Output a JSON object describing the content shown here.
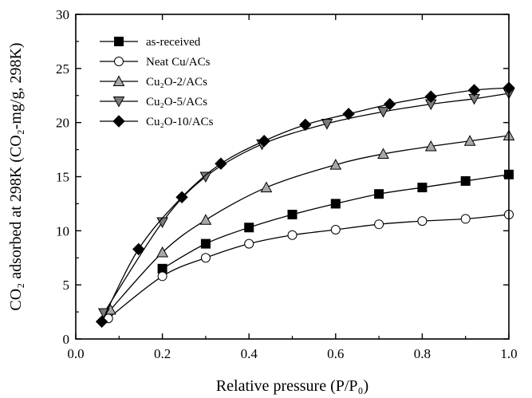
{
  "chart_data": {
    "type": "line",
    "xlabel": "Relative pressure (P/P₀)",
    "ylabel": "CO₂ adsorbed at 298K (CO₂-mg/g, 298K)",
    "xlim": [
      0.0,
      1.0
    ],
    "ylim": [
      0,
      30
    ],
    "x_ticks": [
      "0.0",
      "0.2",
      "0.4",
      "0.6",
      "0.8",
      "1.0"
    ],
    "y_ticks": [
      "0",
      "5",
      "10",
      "15",
      "20",
      "25",
      "30"
    ],
    "grid": false,
    "legend_position": "top-left",
    "series": [
      {
        "name": "as-received",
        "marker": "square",
        "fill": "#000000",
        "x": [
          0.2,
          0.3,
          0.4,
          0.5,
          0.6,
          0.7,
          0.8,
          0.9,
          1.0
        ],
        "y": [
          6.5,
          8.8,
          10.3,
          11.5,
          12.5,
          13.4,
          14.0,
          14.6,
          15.2
        ]
      },
      {
        "name": "Neat Cu/ACs",
        "marker": "circle",
        "fill": "#ffffff",
        "x": [
          0.075,
          0.2,
          0.3,
          0.4,
          0.5,
          0.6,
          0.7,
          0.8,
          0.9,
          1.0
        ],
        "y": [
          1.9,
          5.8,
          7.5,
          8.8,
          9.6,
          10.1,
          10.6,
          10.9,
          11.1,
          11.5
        ]
      },
      {
        "name": "Cu₂O-2/ACs",
        "marker": "triangle-up",
        "fill": "#a8a8a8",
        "x": [
          0.08,
          0.2,
          0.3,
          0.44,
          0.6,
          0.71,
          0.82,
          0.91,
          1.0
        ],
        "y": [
          2.7,
          8.0,
          11.0,
          14.0,
          16.1,
          17.1,
          17.8,
          18.3,
          18.8
        ]
      },
      {
        "name": "Cu₂O-5/ACs",
        "marker": "triangle-down",
        "fill": "#7a7a7a",
        "x": [
          0.065,
          0.2,
          0.3,
          0.43,
          0.58,
          0.71,
          0.82,
          0.92,
          1.0
        ],
        "y": [
          2.4,
          10.8,
          15.0,
          18.0,
          19.9,
          21.0,
          21.7,
          22.2,
          22.7
        ]
      },
      {
        "name": "Cu₂O-10/ACs",
        "marker": "diamond",
        "fill": "#000000",
        "x": [
          0.06,
          0.145,
          0.245,
          0.335,
          0.435,
          0.53,
          0.63,
          0.725,
          0.82,
          0.92,
          1.0
        ],
        "y": [
          1.6,
          8.3,
          13.1,
          16.2,
          18.3,
          19.8,
          20.8,
          21.7,
          22.4,
          23.0,
          23.2
        ]
      }
    ]
  }
}
